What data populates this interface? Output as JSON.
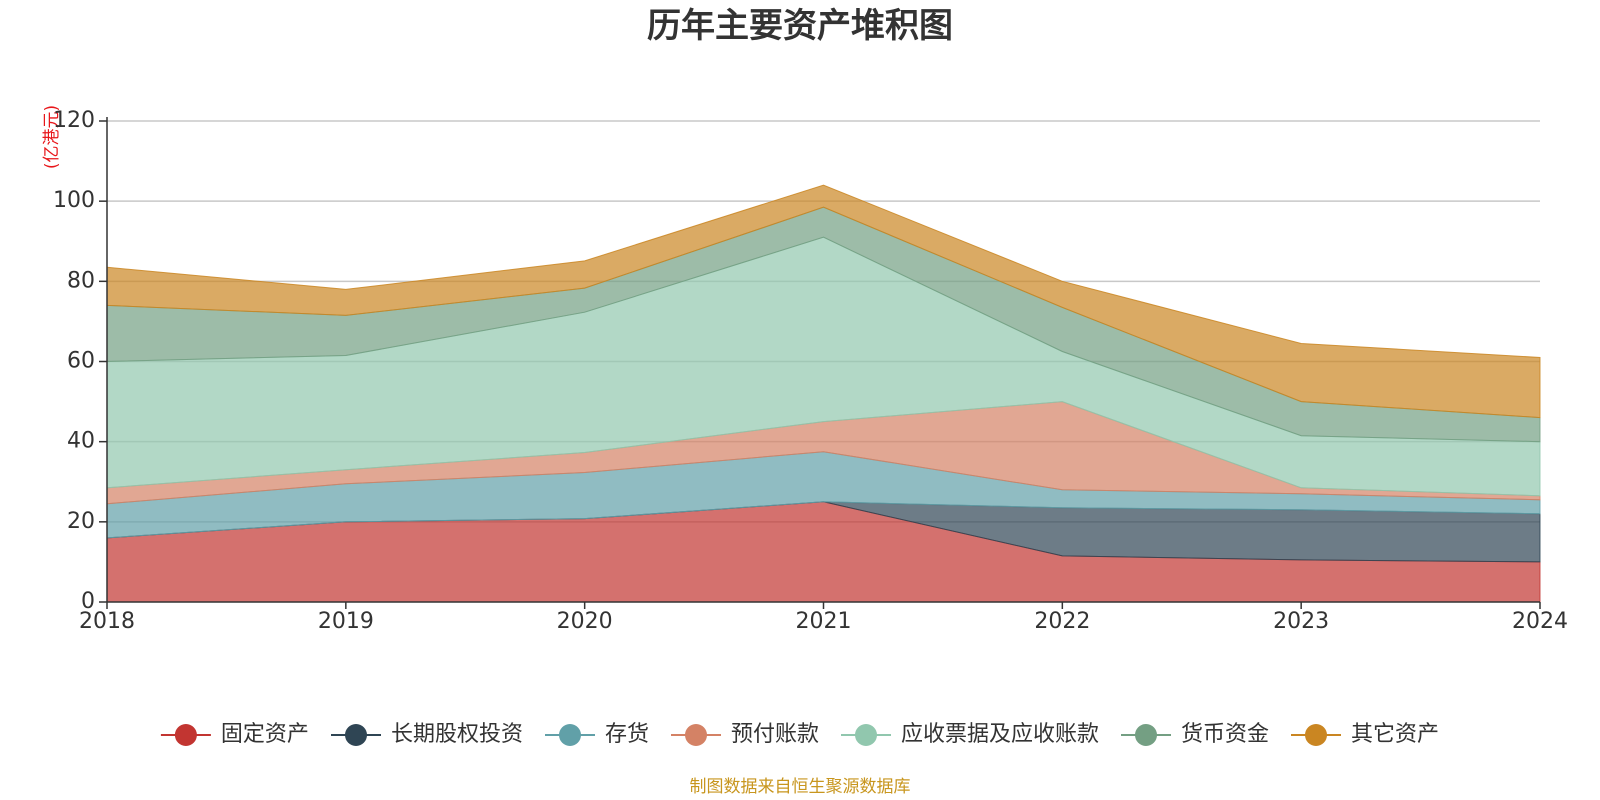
{
  "chart_data": {
    "type": "area",
    "stacked": true,
    "title": "历年主要资产堆积图",
    "unit_label": "(亿港元)",
    "x": [
      "2018",
      "2019",
      "2020",
      "2021",
      "2022",
      "2023",
      "2024"
    ],
    "ylim": [
      0,
      120
    ],
    "yticks": [
      "0",
      "20",
      "40",
      "60",
      "80",
      "100",
      "120"
    ],
    "grid": true,
    "legend_position": "bottom",
    "source": "制图数据来自恒生聚源数据库",
    "series": [
      {
        "name": "固定资产",
        "color": "#c23531",
        "values": [
          16,
          20,
          20.8,
          25,
          11.5,
          10.5,
          10
        ]
      },
      {
        "name": "长期股权投资",
        "color": "#2f4554",
        "values": [
          0,
          0,
          0,
          0,
          12,
          12.5,
          12
        ]
      },
      {
        "name": "存货",
        "color": "#61a0a8",
        "values": [
          8.5,
          9.5,
          11.5,
          12.5,
          4.5,
          4,
          3.5
        ]
      },
      {
        "name": "预付账款",
        "color": "#d48265",
        "values": [
          4,
          3.5,
          5,
          7.5,
          22,
          1.5,
          1
        ]
      },
      {
        "name": "应收票据及应收账款",
        "color": "#91c7ae",
        "values": [
          31.5,
          28.5,
          35,
          46,
          12.5,
          13,
          13.5
        ]
      },
      {
        "name": "货币资金",
        "color": "#749f83",
        "values": [
          14,
          10,
          6,
          7.5,
          11,
          8.5,
          6
        ]
      },
      {
        "name": "其它资产",
        "color": "#ca8622",
        "values": [
          9.5,
          6.5,
          6.8,
          5.5,
          6.5,
          14.5,
          15
        ]
      }
    ]
  }
}
